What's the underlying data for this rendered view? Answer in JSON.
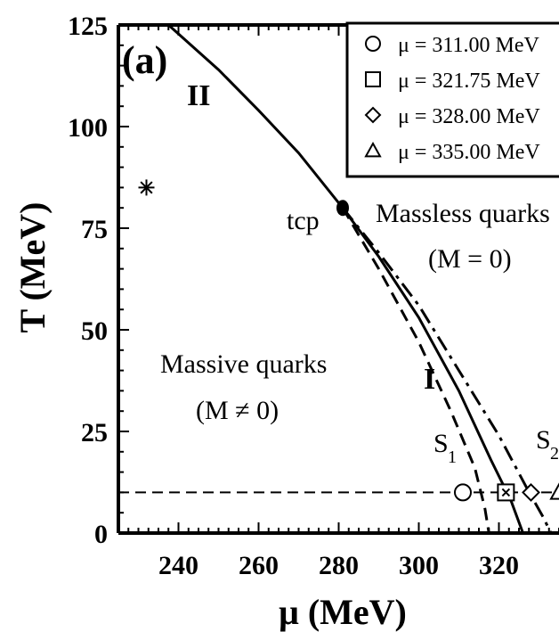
{
  "chart_data": {
    "type": "line",
    "panel_label": "(a)",
    "xlabel": "μ (MeV)",
    "ylabel": "T (MeV)",
    "xlim": [
      225,
      335
    ],
    "ylim": [
      0,
      125
    ],
    "x_ticks": [
      "240",
      "260",
      "280",
      "300",
      "320"
    ],
    "y_ticks": [
      "0",
      "25",
      "50",
      "75",
      "100",
      "125"
    ],
    "series": [
      {
        "style": "solid",
        "points": [
          [
            237.5,
            125
          ],
          [
            250,
            114
          ],
          [
            260,
            104
          ],
          [
            270,
            93.5
          ],
          [
            281,
            80
          ],
          [
            290,
            68
          ],
          [
            300,
            53
          ],
          [
            310,
            35
          ],
          [
            318,
            18
          ],
          [
            323,
            8
          ],
          [
            326,
            0
          ]
        ]
      },
      {
        "style": "dashed",
        "points": [
          [
            281,
            80
          ],
          [
            290,
            65
          ],
          [
            300,
            47
          ],
          [
            308,
            30
          ],
          [
            314,
            16
          ],
          [
            316.5,
            6
          ],
          [
            317.5,
            0
          ]
        ]
      },
      {
        "style": "dash-dot",
        "points": [
          [
            281,
            80
          ],
          [
            290,
            69
          ],
          [
            300,
            56
          ],
          [
            310,
            40
          ],
          [
            320,
            24
          ],
          [
            327,
            11
          ],
          [
            331,
            4
          ],
          [
            333,
            0
          ]
        ]
      },
      {
        "style": "dashed-horizontal",
        "points": [
          [
            225,
            10
          ],
          [
            335,
            10
          ]
        ]
      }
    ],
    "markers": [
      {
        "symbol": "circle",
        "x": 311.0,
        "y": 10
      },
      {
        "symbol": "square",
        "x": 321.75,
        "y": 10
      },
      {
        "symbol": "diamond",
        "x": 328.0,
        "y": 10
      },
      {
        "symbol": "triangle",
        "x": 335.0,
        "y": 10
      }
    ],
    "special_points": [
      {
        "label": "tcp",
        "x": 281,
        "y": 80
      },
      {
        "symbol": "asterisk",
        "x": 232,
        "y": 85
      }
    ],
    "legend": {
      "placement": "top-right",
      "entries": [
        {
          "symbol": "circle",
          "label": "μ = 311.00 MeV"
        },
        {
          "symbol": "square",
          "label": "μ = 321.75 MeV"
        },
        {
          "symbol": "diamond",
          "label": "μ = 328.00 MeV"
        },
        {
          "symbol": "triangle",
          "label": "μ = 335.00 MeV"
        }
      ]
    },
    "annotations": {
      "line_ii": "II",
      "line_i": "I",
      "tcp": "tcp",
      "massless_title": "Massless quarks",
      "massless_eq": "(M = 0)",
      "massive_title": "Massive quarks",
      "massive_eq": "(M ≠ 0)",
      "s1": "S",
      "s1_sub": "1",
      "s2": "S",
      "s2_sub": "2"
    }
  }
}
